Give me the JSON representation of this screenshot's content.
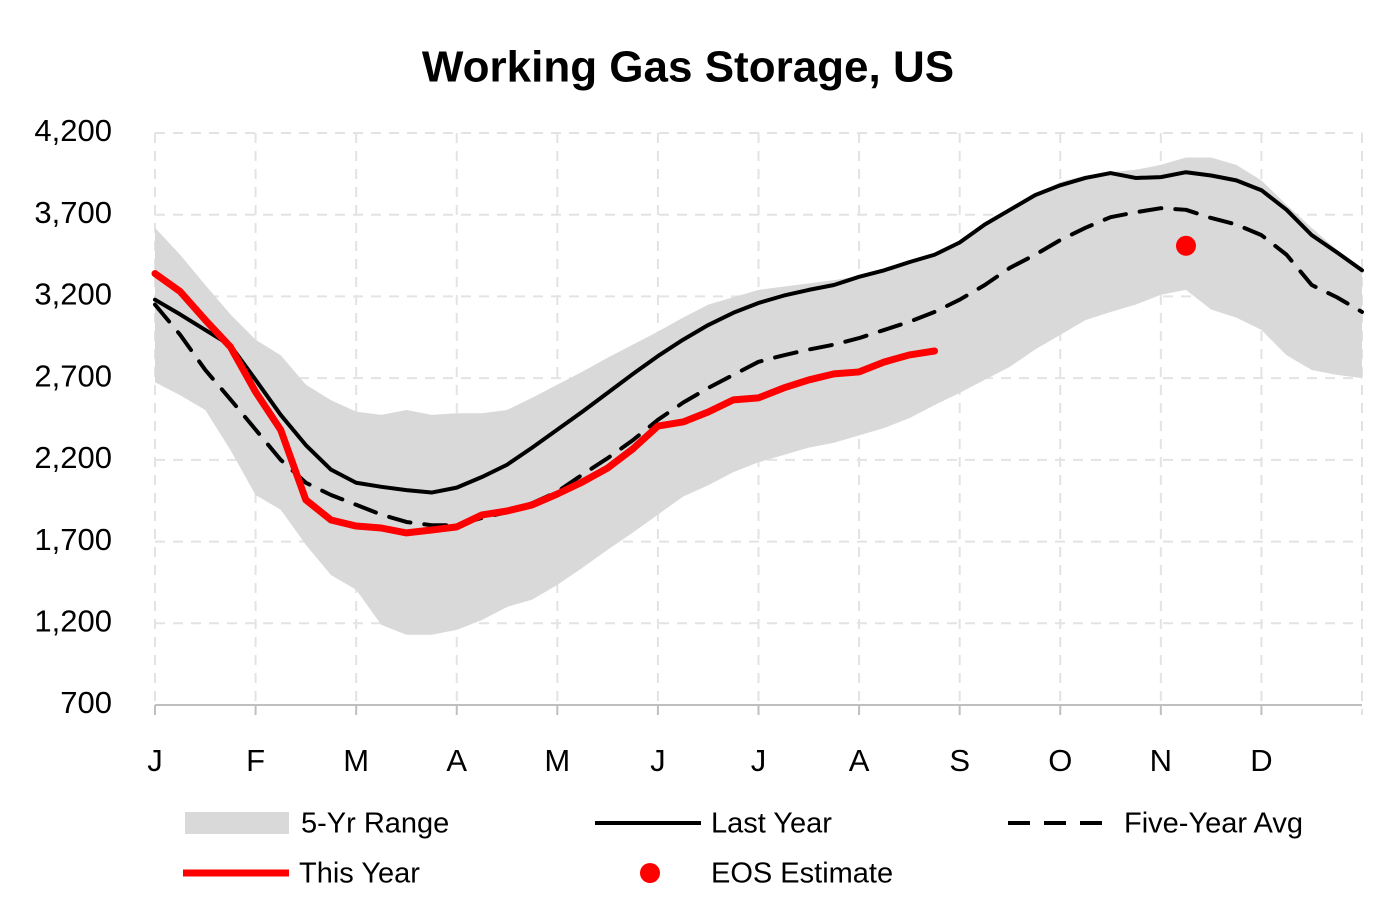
{
  "chart_data": {
    "type": "line",
    "title": "Working Gas Storage, US",
    "x": [
      0,
      0.25,
      0.5,
      0.75,
      1,
      1.25,
      1.5,
      1.75,
      2,
      2.25,
      2.5,
      2.75,
      3,
      3.25,
      3.5,
      3.75,
      4,
      4.25,
      4.5,
      4.75,
      5,
      5.25,
      5.5,
      5.75,
      6,
      6.25,
      6.5,
      6.75,
      7,
      7.25,
      7.5,
      7.75,
      8,
      8.25,
      8.5,
      8.75,
      9,
      9.25,
      9.5,
      9.75,
      10,
      10.25,
      10.5,
      10.75,
      11,
      11.25,
      11.5,
      11.75,
      12
    ],
    "xlim": [
      0,
      12
    ],
    "xticks": [
      {
        "value": 0,
        "label": "J"
      },
      {
        "value": 1,
        "label": "F"
      },
      {
        "value": 2,
        "label": "M"
      },
      {
        "value": 3,
        "label": "A"
      },
      {
        "value": 4,
        "label": "M"
      },
      {
        "value": 5,
        "label": "J"
      },
      {
        "value": 6,
        "label": "J"
      },
      {
        "value": 7,
        "label": "A"
      },
      {
        "value": 8,
        "label": "S"
      },
      {
        "value": 9,
        "label": "O"
      },
      {
        "value": 10,
        "label": "N"
      },
      {
        "value": 11,
        "label": "D"
      }
    ],
    "ylim": [
      700,
      4200
    ],
    "yticks": [
      700,
      {
        "value": 1200,
        "label": "1,200"
      },
      {
        "value": 1700,
        "label": "1,700"
      },
      {
        "value": 2200,
        "label": "2,200"
      },
      {
        "value": 2700,
        "label": "2,700"
      },
      {
        "value": 3200,
        "label": "3,200"
      },
      {
        "value": 3700,
        "label": "3,700"
      },
      {
        "value": 4200,
        "label": "4,200"
      }
    ],
    "grid": true,
    "series": [
      {
        "name": "5-Yr Range",
        "kind": "band",
        "color": "#d9d9d9",
        "high": [
          3620,
          3455,
          3270,
          3090,
          2935,
          2840,
          2660,
          2565,
          2495,
          2475,
          2505,
          2475,
          2485,
          2485,
          2505,
          2580,
          2660,
          2740,
          2825,
          2905,
          2985,
          3070,
          3150,
          3195,
          3240,
          3260,
          3280,
          3300,
          3325,
          3360,
          3410,
          3455,
          3530,
          3640,
          3730,
          3820,
          3900,
          3940,
          3960,
          3975,
          4005,
          4050,
          4050,
          4005,
          3910,
          3760,
          3620,
          3485,
          3375
        ],
        "low": [
          2675,
          2595,
          2505,
          2260,
          1985,
          1895,
          1680,
          1495,
          1405,
          1190,
          1130,
          1130,
          1160,
          1220,
          1300,
          1345,
          1435,
          1540,
          1650,
          1755,
          1865,
          1975,
          2045,
          2125,
          2185,
          2230,
          2275,
          2305,
          2350,
          2395,
          2455,
          2535,
          2610,
          2690,
          2770,
          2875,
          2965,
          3055,
          3105,
          3150,
          3210,
          3240,
          3120,
          3070,
          2995,
          2840,
          2750,
          2720,
          2700
        ]
      },
      {
        "name": "Last Year",
        "kind": "line",
        "color": "#000000",
        "width": 4,
        "style": "solid",
        "values": [
          3180,
          3090,
          2995,
          2900,
          2690,
          2475,
          2290,
          2140,
          2060,
          2035,
          2015,
          2000,
          2030,
          2095,
          2170,
          2275,
          2385,
          2495,
          2610,
          2725,
          2835,
          2935,
          3025,
          3100,
          3160,
          3205,
          3240,
          3270,
          3320,
          3360,
          3410,
          3455,
          3530,
          3640,
          3730,
          3820,
          3880,
          3925,
          3955,
          3925,
          3930,
          3960,
          3940,
          3910,
          3850,
          3730,
          3575,
          3470,
          3360
        ]
      },
      {
        "name": "Five-Year Avg",
        "kind": "line",
        "color": "#000000",
        "width": 4,
        "style": "dashed",
        "values": [
          3150,
          2965,
          2750,
          2570,
          2385,
          2200,
          2060,
          1985,
          1925,
          1865,
          1820,
          1800,
          1800,
          1845,
          1880,
          1935,
          2005,
          2110,
          2210,
          2320,
          2445,
          2550,
          2640,
          2720,
          2800,
          2840,
          2875,
          2905,
          2945,
          2995,
          3045,
          3105,
          3180,
          3270,
          3375,
          3455,
          3545,
          3620,
          3685,
          3715,
          3740,
          3730,
          3680,
          3640,
          3575,
          3455,
          3270,
          3195,
          3105
        ]
      },
      {
        "name": "This Year",
        "kind": "line",
        "color": "#ff0000",
        "width": 7,
        "style": "solid",
        "values": [
          3340,
          3230,
          3056,
          2891,
          2616,
          2383,
          1955,
          1832,
          1795,
          1783,
          1753,
          1771,
          1790,
          1863,
          1887,
          1924,
          1991,
          2065,
          2150,
          2267,
          2407,
          2432,
          2493,
          2567,
          2579,
          2640,
          2689,
          2726,
          2738,
          2799,
          2842,
          2866,
          null,
          null,
          null,
          null,
          null,
          null,
          null,
          null,
          null,
          null,
          null,
          null,
          null,
          null,
          null,
          null,
          null
        ]
      },
      {
        "name": "EOS Estimate",
        "kind": "point",
        "color": "#ff0000",
        "x": [
          10.25
        ],
        "values": [
          3510
        ]
      }
    ]
  }
}
